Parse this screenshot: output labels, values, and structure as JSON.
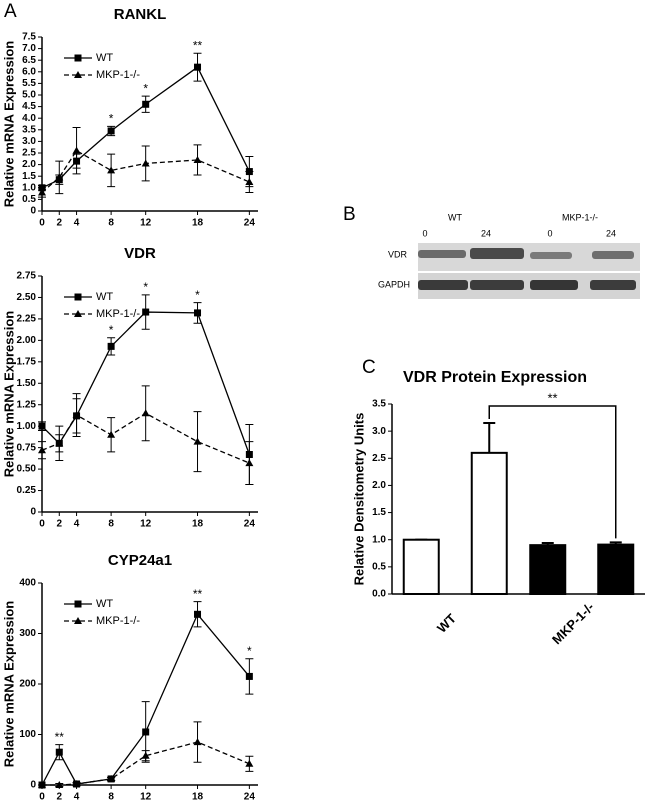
{
  "panel_labels": [
    "A",
    "B",
    "C"
  ],
  "blot": {
    "groups": [
      "WT",
      "MKP-1-/-"
    ],
    "timepoints": [
      "0",
      "24",
      "0",
      "24"
    ],
    "rows": [
      "VDR",
      "GAPDH"
    ]
  },
  "chart_data": [
    {
      "type": "line",
      "title": "RANKL",
      "y_label": "Relative mRNA  Expression",
      "x": [
        0,
        2,
        4,
        8,
        12,
        18,
        24
      ],
      "xlim": [
        0,
        25
      ],
      "xticks": [
        0,
        2,
        4,
        8,
        12,
        18,
        24
      ],
      "ylim": [
        0,
        7.5
      ],
      "yticks": [
        0,
        0.5,
        {
          "value": 1,
          "label": "1.0"
        },
        1.5,
        {
          "value": 2,
          "label": "2.0"
        },
        2.5,
        {
          "value": 3,
          "label": "3.0"
        },
        3.5,
        {
          "value": 4,
          "label": "4.0"
        },
        4.5,
        {
          "value": 5,
          "label": "5.0"
        },
        5.5,
        {
          "value": 6,
          "label": "6.0"
        },
        6.5,
        {
          "value": 7,
          "label": "7.0"
        },
        7.5
      ],
      "series": [
        {
          "name": "WT",
          "color": "#000000",
          "marker": "square",
          "line_style": "solid",
          "values": [
            1.0,
            1.35,
            2.15,
            3.45,
            4.6,
            6.2,
            1.7
          ],
          "errors": [
            0.1,
            0.2,
            0.3,
            0.2,
            0.35,
            0.6,
            0.65
          ]
        },
        {
          "name": "MKP-1-/-",
          "color": "#000000",
          "marker": "triangle",
          "line_style": "dashed",
          "values": [
            0.8,
            1.45,
            2.6,
            1.75,
            2.05,
            2.2,
            1.25
          ],
          "errors": [
            0.2,
            0.7,
            1.0,
            0.7,
            0.75,
            0.65,
            0.45
          ]
        }
      ],
      "annotations": [
        {
          "text": "*",
          "at": 8
        },
        {
          "text": "*",
          "at": 12
        },
        {
          "text": "**",
          "at": 18
        }
      ]
    },
    {
      "type": "line",
      "title": "VDR",
      "y_label": "Relative mRNA  Expression",
      "x": [
        0,
        2,
        4,
        8,
        12,
        18,
        24
      ],
      "xlim": [
        0,
        25
      ],
      "xticks": [
        0,
        2,
        4,
        8,
        12,
        18,
        24
      ],
      "ylim": [
        0,
        2.75
      ],
      "yticks": [
        0,
        0.25,
        {
          "value": 0.5,
          "label": "0.50"
        },
        0.75,
        {
          "value": 1,
          "label": "1.00"
        },
        1.25,
        {
          "value": 1.5,
          "label": "1.50"
        },
        1.75,
        {
          "value": 2,
          "label": "2.00"
        },
        2.25,
        {
          "value": 2.5,
          "label": "2.50"
        },
        2.75
      ],
      "series": [
        {
          "name": "WT",
          "color": "#000000",
          "marker": "square",
          "line_style": "solid",
          "values": [
            1.0,
            0.8,
            1.12,
            1.93,
            2.33,
            2.32,
            0.67
          ],
          "errors": [
            0.05,
            0.1,
            0.2,
            0.1,
            0.2,
            0.12,
            0.35
          ]
        },
        {
          "name": "MKP-1-/-",
          "color": "#000000",
          "marker": "triangle",
          "line_style": "dashed",
          "values": [
            0.72,
            0.8,
            1.13,
            0.9,
            1.15,
            0.82,
            0.57
          ],
          "errors": [
            0.1,
            0.2,
            0.25,
            0.2,
            0.32,
            0.35,
            0.25
          ]
        }
      ],
      "annotations": [
        {
          "text": "*",
          "at": 8
        },
        {
          "text": "*",
          "at": 12
        },
        {
          "text": "*",
          "at": 18
        }
      ]
    },
    {
      "type": "line",
      "title": "CYP24a1",
      "y_label": "Relative mRNA  Expression",
      "x": [
        0,
        2,
        4,
        8,
        12,
        18,
        24
      ],
      "xlim": [
        0,
        25
      ],
      "xticks": [
        0,
        2,
        4,
        8,
        12,
        18,
        24
      ],
      "ylim": [
        0,
        400
      ],
      "yticks": [
        0,
        100,
        200,
        300,
        400
      ],
      "series": [
        {
          "name": "WT",
          "color": "#000000",
          "marker": "square",
          "line_style": "solid",
          "values": [
            0,
            65,
            2,
            12,
            105,
            338,
            215
          ],
          "errors": [
            0,
            15,
            3,
            3,
            60,
            25,
            35
          ]
        },
        {
          "name": "MKP-1-/-",
          "color": "#000000",
          "marker": "triangle",
          "line_style": "dashed",
          "values": [
            0,
            0,
            2,
            12,
            58,
            85,
            42
          ],
          "errors": [
            0,
            3,
            2,
            3,
            10,
            40,
            15
          ]
        }
      ],
      "annotations": [
        {
          "text": "**",
          "at": 2
        },
        {
          "text": "**",
          "at": 18
        },
        {
          "text": "*",
          "at": 24
        }
      ]
    },
    {
      "type": "bar",
      "title": "VDR Protein Expression",
      "y_label": "Relative Densitometry Units",
      "categories": [
        "WT",
        "MKP-1-/-"
      ],
      "ylim": [
        0,
        3.5
      ],
      "yticks": [
        {
          "value": 0,
          "label": "0.0"
        },
        0.5,
        {
          "value": 1,
          "label": "1.0"
        },
        1.5,
        {
          "value": 2,
          "label": "2.0"
        },
        2.5,
        {
          "value": 3,
          "label": "3.0"
        },
        3.5
      ],
      "series": [
        {
          "colors": [
            "#ffffff",
            "#000000"
          ],
          "values": [
            1.0,
            0.9
          ],
          "errors": [
            0,
            0.04
          ]
        },
        {
          "colors": [
            "#ffffff",
            "#000000"
          ],
          "values": [
            2.6,
            0.91
          ],
          "errors": [
            0.55,
            0.04
          ]
        }
      ],
      "significance": "**"
    }
  ]
}
